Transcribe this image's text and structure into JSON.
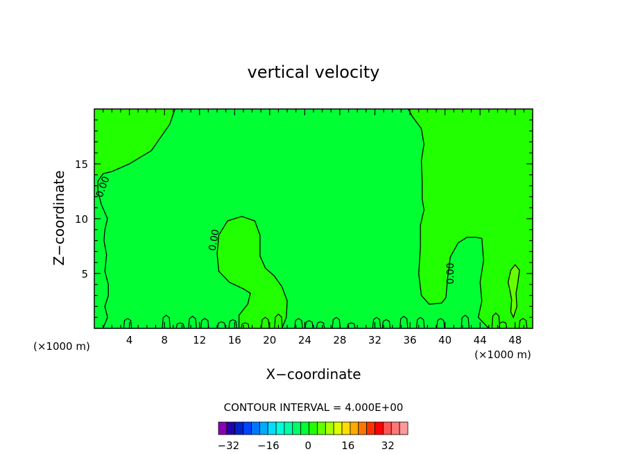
{
  "chart_data": {
    "type": "heatmap",
    "title": "vertical velocity",
    "xlabel": "X−coordinate",
    "ylabel": "Z−coordinate",
    "x_unit_left": "(×1000 m)",
    "x_unit_right": "(×1000 m)",
    "xlim": [
      0,
      50
    ],
    "ylim": [
      0,
      20
    ],
    "x_ticks": [
      4,
      8,
      12,
      16,
      20,
      24,
      28,
      32,
      36,
      40,
      44,
      48
    ],
    "y_ticks": [
      5,
      10,
      15
    ],
    "contour_interval_label": "CONTOUR INTERVAL = 4.000E+00",
    "contour_labels": [
      {
        "text": "0.00",
        "x": 1.3,
        "y": 12.8
      },
      {
        "text": "0.00",
        "x": 14.0,
        "y": 8.0
      },
      {
        "text": "0.00",
        "x": 41.0,
        "y": 5.0
      }
    ],
    "regions": [
      {
        "level": "0 to 4",
        "color": "#22ff00",
        "extent": {
          "x": [
            0,
            9.5
          ],
          "y": [
            14,
            20
          ]
        }
      },
      {
        "level": "0 to 4",
        "color": "#22ff00",
        "extent": {
          "x": [
            13.5,
            22
          ],
          "y": [
            0,
            10.2
          ]
        }
      },
      {
        "level": "0 to 4",
        "color": "#22ff00",
        "extent": {
          "x": [
            36,
            50
          ],
          "y": [
            2,
            20
          ]
        }
      },
      {
        "level": "4 to 8",
        "color": "#66ff00",
        "extent": {
          "x": [
            47,
            48.5
          ],
          "y": [
            1,
            5.8
          ]
        }
      }
    ],
    "colorbar": {
      "colors": [
        "#8a00b5",
        "#2200aa",
        "#0022cc",
        "#0044ff",
        "#0077ff",
        "#00aaff",
        "#00ddff",
        "#00ffdd",
        "#00ffaa",
        "#00ff66",
        "#00ff33",
        "#22ff00",
        "#66ff00",
        "#aaff00",
        "#ddff00",
        "#ffdd00",
        "#ffaa00",
        "#ff7700",
        "#ff3300",
        "#ff0000",
        "#ff5555",
        "#ff7777",
        "#ff9999"
      ],
      "tick_values": [
        -32,
        -16,
        0,
        16,
        32
      ],
      "tick_labels": [
        "−32",
        "−16",
        "0",
        "16",
        "32"
      ],
      "range": [
        -36,
        40
      ]
    }
  }
}
